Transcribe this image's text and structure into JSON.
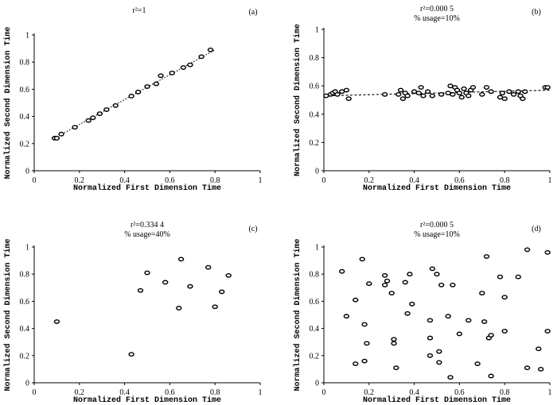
{
  "chart_data": [
    {
      "panel": "(a)",
      "type": "scatter",
      "title_lines": [
        "r²=1"
      ],
      "xlabel": "Normalized First Dimension Time",
      "ylabel": "Normalized Second Dimension Time",
      "xlim": [
        0,
        1
      ],
      "ylim": [
        0,
        1
      ],
      "xticks": [
        "0",
        "0.2",
        "0.4",
        "0.6",
        "0.8",
        "1"
      ],
      "yticks": [
        "0",
        "0.2",
        "0.4",
        "0.6",
        "0.8",
        "1"
      ],
      "trendline": {
        "x": [
          0.09,
          0.8
        ],
        "y": [
          0.24,
          0.89
        ],
        "style": "dotted"
      },
      "points": [
        [
          0.09,
          0.24
        ],
        [
          0.1,
          0.24
        ],
        [
          0.12,
          0.27
        ],
        [
          0.18,
          0.32
        ],
        [
          0.24,
          0.37
        ],
        [
          0.26,
          0.39
        ],
        [
          0.29,
          0.42
        ],
        [
          0.32,
          0.45
        ],
        [
          0.36,
          0.48
        ],
        [
          0.43,
          0.55
        ],
        [
          0.46,
          0.58
        ],
        [
          0.5,
          0.62
        ],
        [
          0.54,
          0.64
        ],
        [
          0.56,
          0.7
        ],
        [
          0.61,
          0.72
        ],
        [
          0.66,
          0.76
        ],
        [
          0.69,
          0.78
        ],
        [
          0.74,
          0.84
        ],
        [
          0.78,
          0.89
        ]
      ]
    },
    {
      "panel": "(b)",
      "type": "scatter",
      "title_lines": [
        "r²=0.000 5",
        "% usage=10%"
      ],
      "xlabel": "Normalized First Dimension Time",
      "ylabel": "Normalized Second Dimension Time",
      "xlim": [
        0,
        1
      ],
      "ylim": [
        0,
        1
      ],
      "xticks": [
        "0",
        "0.2",
        "0.4",
        "0.6",
        "0.8",
        "1"
      ],
      "yticks": [
        "0",
        "0.2",
        "0.4",
        "0.6",
        "0.8",
        "1"
      ],
      "trendline": {
        "x": [
          0.0,
          1.0
        ],
        "y": [
          0.53,
          0.57
        ],
        "style": "dashed"
      },
      "points": [
        [
          0.01,
          0.53
        ],
        [
          0.03,
          0.54
        ],
        [
          0.04,
          0.55
        ],
        [
          0.05,
          0.56
        ],
        [
          0.06,
          0.54
        ],
        [
          0.08,
          0.56
        ],
        [
          0.1,
          0.57
        ],
        [
          0.11,
          0.51
        ],
        [
          0.27,
          0.54
        ],
        [
          0.33,
          0.54
        ],
        [
          0.34,
          0.57
        ],
        [
          0.35,
          0.51
        ],
        [
          0.36,
          0.55
        ],
        [
          0.37,
          0.53
        ],
        [
          0.4,
          0.56
        ],
        [
          0.42,
          0.55
        ],
        [
          0.43,
          0.59
        ],
        [
          0.44,
          0.53
        ],
        [
          0.46,
          0.56
        ],
        [
          0.48,
          0.53
        ],
        [
          0.52,
          0.54
        ],
        [
          0.55,
          0.55
        ],
        [
          0.56,
          0.6
        ],
        [
          0.57,
          0.54
        ],
        [
          0.58,
          0.59
        ],
        [
          0.59,
          0.57
        ],
        [
          0.6,
          0.55
        ],
        [
          0.61,
          0.52
        ],
        [
          0.62,
          0.58
        ],
        [
          0.63,
          0.55
        ],
        [
          0.64,
          0.53
        ],
        [
          0.65,
          0.57
        ],
        [
          0.66,
          0.59
        ],
        [
          0.7,
          0.54
        ],
        [
          0.72,
          0.59
        ],
        [
          0.74,
          0.56
        ],
        [
          0.78,
          0.52
        ],
        [
          0.79,
          0.55
        ],
        [
          0.8,
          0.51
        ],
        [
          0.82,
          0.56
        ],
        [
          0.84,
          0.54
        ],
        [
          0.86,
          0.56
        ],
        [
          0.87,
          0.53
        ],
        [
          0.88,
          0.51
        ],
        [
          0.89,
          0.56
        ],
        [
          0.98,
          0.59
        ],
        [
          0.99,
          0.59
        ]
      ]
    },
    {
      "panel": "(c)",
      "type": "scatter",
      "title_lines": [
        "r²=0.334 4",
        "% usage=40%"
      ],
      "xlabel": "Normalized First Dimension Time",
      "ylabel": "Normalized Second Dimension Time",
      "xlim": [
        0,
        1
      ],
      "ylim": [
        0,
        1
      ],
      "xticks": [
        "0",
        "0.2",
        "0.4",
        "0.6",
        "0.8",
        "1"
      ],
      "yticks": [
        "0",
        "0.2",
        "0.4",
        "0.6",
        "0.8",
        "1"
      ],
      "points": [
        [
          0.1,
          0.45
        ],
        [
          0.43,
          0.21
        ],
        [
          0.47,
          0.68
        ],
        [
          0.5,
          0.81
        ],
        [
          0.58,
          0.74
        ],
        [
          0.64,
          0.55
        ],
        [
          0.65,
          0.91
        ],
        [
          0.69,
          0.71
        ],
        [
          0.77,
          0.85
        ],
        [
          0.8,
          0.56
        ],
        [
          0.83,
          0.67
        ],
        [
          0.86,
          0.79
        ]
      ]
    },
    {
      "panel": "(d)",
      "type": "scatter",
      "title_lines": [
        "r²=0.000 5",
        "% usage=10%"
      ],
      "xlabel": "Normalized First Dimension Time",
      "ylabel": "Normalized Second Dimension Time",
      "xlim": [
        0,
        1
      ],
      "ylim": [
        0,
        1
      ],
      "xticks": [
        "0",
        "0.2",
        "0.4",
        "0.6",
        "0.8",
        "1"
      ],
      "yticks": [
        "0",
        "0.2",
        "0.4",
        "0.6",
        "0.8",
        "1"
      ],
      "points": [
        [
          0.08,
          0.82
        ],
        [
          0.1,
          0.49
        ],
        [
          0.14,
          0.61
        ],
        [
          0.14,
          0.14
        ],
        [
          0.17,
          0.91
        ],
        [
          0.18,
          0.43
        ],
        [
          0.18,
          0.16
        ],
        [
          0.19,
          0.29
        ],
        [
          0.2,
          0.73
        ],
        [
          0.27,
          0.72
        ],
        [
          0.27,
          0.79
        ],
        [
          0.28,
          0.75
        ],
        [
          0.3,
          0.66
        ],
        [
          0.31,
          0.32
        ],
        [
          0.31,
          0.29
        ],
        [
          0.32,
          0.11
        ],
        [
          0.36,
          0.74
        ],
        [
          0.37,
          0.51
        ],
        [
          0.38,
          0.8
        ],
        [
          0.39,
          0.58
        ],
        [
          0.47,
          0.46
        ],
        [
          0.47,
          0.33
        ],
        [
          0.47,
          0.2
        ],
        [
          0.48,
          0.84
        ],
        [
          0.5,
          0.8
        ],
        [
          0.51,
          0.23
        ],
        [
          0.51,
          0.15
        ],
        [
          0.52,
          0.72
        ],
        [
          0.55,
          0.49
        ],
        [
          0.56,
          0.04
        ],
        [
          0.57,
          0.72
        ],
        [
          0.6,
          0.36
        ],
        [
          0.64,
          0.46
        ],
        [
          0.68,
          0.14
        ],
        [
          0.7,
          0.66
        ],
        [
          0.71,
          0.45
        ],
        [
          0.72,
          0.93
        ],
        [
          0.73,
          0.33
        ],
        [
          0.74,
          0.35
        ],
        [
          0.74,
          0.05
        ],
        [
          0.78,
          0.78
        ],
        [
          0.8,
          0.63
        ],
        [
          0.8,
          0.38
        ],
        [
          0.86,
          0.78
        ],
        [
          0.9,
          0.98
        ],
        [
          0.9,
          0.11
        ],
        [
          0.95,
          0.25
        ],
        [
          0.96,
          0.1
        ],
        [
          0.99,
          0.96
        ],
        [
          0.99,
          0.38
        ]
      ]
    }
  ]
}
